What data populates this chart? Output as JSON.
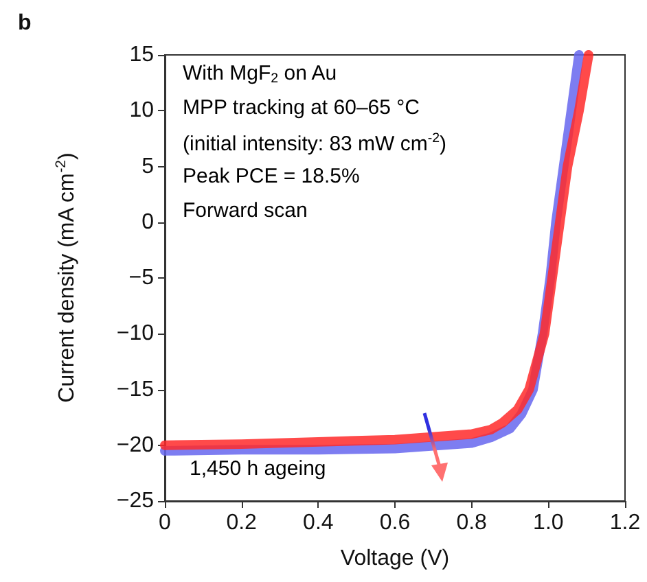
{
  "chart_data": {
    "type": "line",
    "title": "b",
    "xlabel": "Voltage (V)",
    "ylabel": "Current density (mA cm$^{-2}$)",
    "annotations": [
      "With MgF$_{2}$ on Au",
      "MPP tracking at 60–65 °C",
      "(initial intensity: 83 mW cm$^{-2}$)",
      "Peak PCE = 18.5%",
      "Forward scan",
      "1,450 h ageing"
    ],
    "series": [
      {
        "color": "#6666ee",
        "x": [
          0,
          0.2,
          0.4,
          0.6,
          0.8,
          0.85,
          0.9,
          0.93,
          0.96,
          0.985,
          1.005,
          1.02,
          1.04,
          1.06,
          1.08
        ],
        "values": [
          -20.5,
          -20.4,
          -20.4,
          -20.3,
          -19.8,
          -19.3,
          -18.5,
          -17.2,
          -15,
          -10,
          -5,
          0,
          5,
          10,
          15
        ]
      },
      {
        "color": "#ff2a2a",
        "x": [
          0,
          0.2,
          0.4,
          0.6,
          0.8,
          0.85,
          0.88,
          0.92,
          0.95,
          0.99,
          1.01,
          1.03,
          1.05,
          1.08,
          1.105
        ],
        "values": [
          -20,
          -19.9,
          -19.7,
          -19.5,
          -19,
          -18.6,
          -18,
          -16.8,
          -15,
          -10,
          -5,
          0,
          5,
          10,
          15
        ]
      }
    ],
    "xlim": [
      0,
      1.2
    ],
    "xticks": [
      0,
      {
        "value": 0.2,
        "label": "0.2"
      },
      {
        "value": 0.4,
        "label": "0.4"
      },
      {
        "value": 0.6,
        "label": "0.6"
      },
      {
        "value": 0.8,
        "label": "0.8"
      },
      {
        "value": 1,
        "label": "1.0"
      },
      {
        "value": 1.2,
        "label": "1.2"
      }
    ],
    "ylim": [
      -25,
      15
    ],
    "yticks": [
      -25,
      -20,
      -15,
      -10,
      -5,
      0,
      5,
      10,
      15
    ],
    "grid": false,
    "marker": "none",
    "line_style": "solid"
  }
}
